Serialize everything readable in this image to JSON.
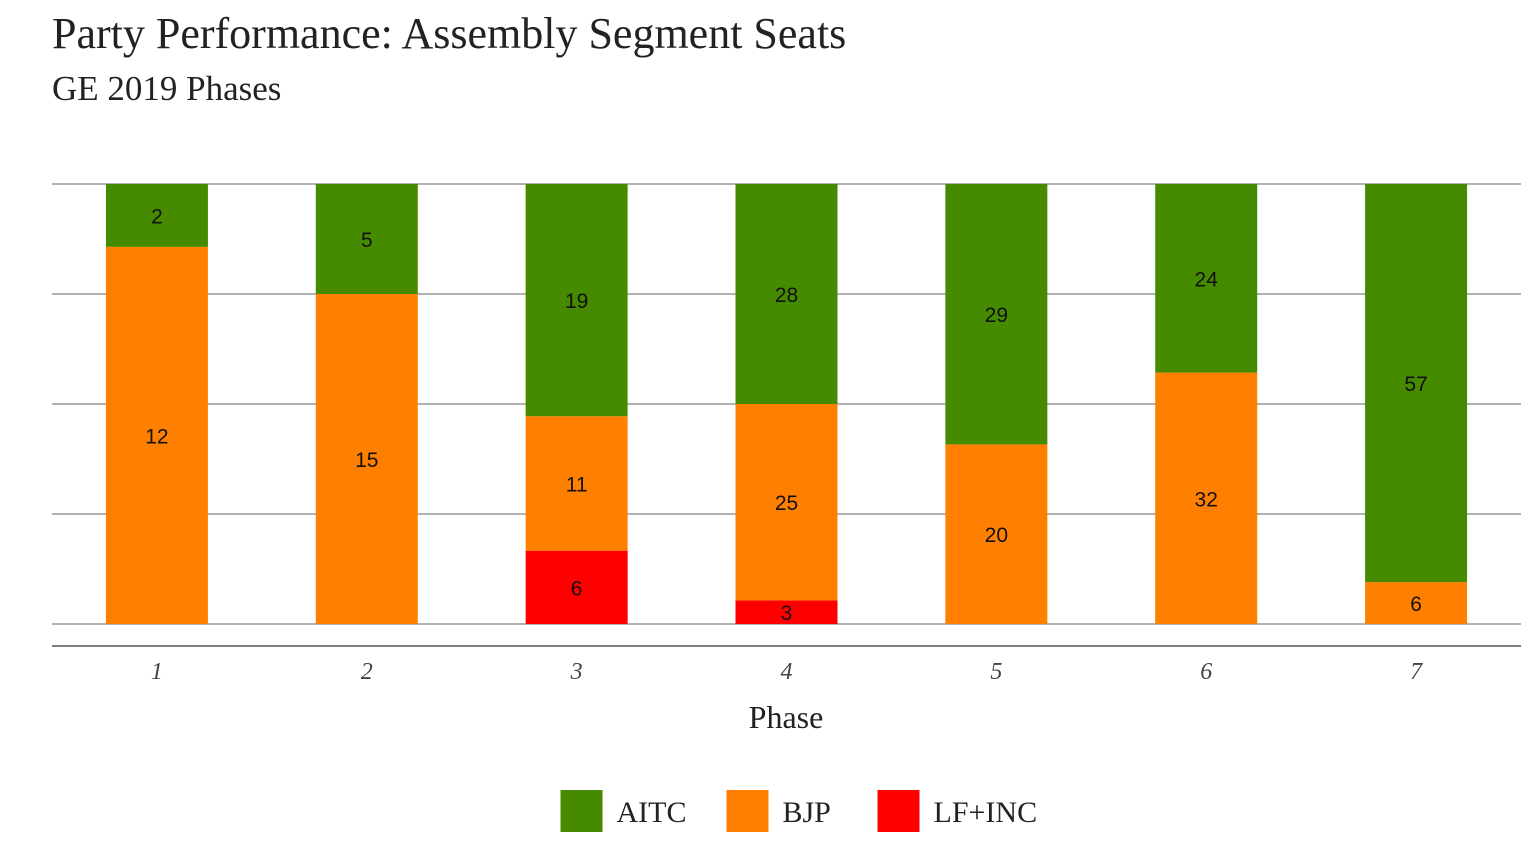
{
  "chart_data": {
    "type": "bar",
    "stacked": true,
    "title": "Party Performance: Assembly Segment Seats",
    "subtitle": "GE 2019 Phases",
    "xlabel": "Phase",
    "ylabel": "",
    "categories": [
      "1",
      "2",
      "3",
      "4",
      "5",
      "6",
      "7"
    ],
    "series": [
      {
        "name": "LF+INC",
        "color": "#ff0000",
        "values": [
          0,
          0,
          6,
          3,
          0,
          0,
          0
        ]
      },
      {
        "name": "BJP",
        "color": "#ff8000",
        "values": [
          12,
          15,
          11,
          25,
          20,
          32,
          6
        ]
      },
      {
        "name": "AITC",
        "color": "#468a00",
        "values": [
          2,
          5,
          19,
          28,
          29,
          24,
          57
        ]
      }
    ],
    "legend_order": [
      "AITC",
      "BJP",
      "LF+INC"
    ],
    "legend_position": "bottom",
    "normalized_percent": true,
    "grid": true
  }
}
